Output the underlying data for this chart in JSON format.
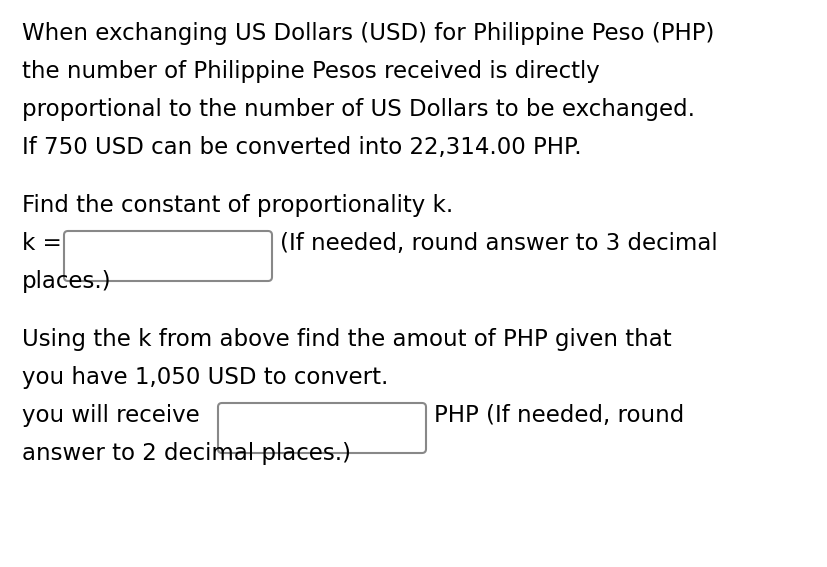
{
  "background_color": "#ffffff",
  "font_family": "DejaVu Sans Condensed",
  "font_size_main": 16.5,
  "text_color": "#000000",
  "paragraph1_lines": [
    "When exchanging US Dollars (USD) for Philippine Peso (PHP)",
    "the number of Philippine Pesos received is directly",
    "proportional to the number of US Dollars to be exchanged.",
    "If 750 USD can be converted into 22,314.00 PHP."
  ],
  "paragraph2_line1": "Find the constant of proportionality k.",
  "k_label": "k =",
  "k_hint": "(If needed, round answer to 3 decimal",
  "k_hint2": "places.)",
  "paragraph3_lines": [
    "Using the k from above find the amout of PHP given that",
    "you have 1,050 USD to convert."
  ],
  "receive_label": "you will receive",
  "receive_hint": "PHP (If needed, round",
  "receive_hint2": "answer to 2 decimal places.)",
  "box1_color": "#888888",
  "box2_color": "#888888"
}
